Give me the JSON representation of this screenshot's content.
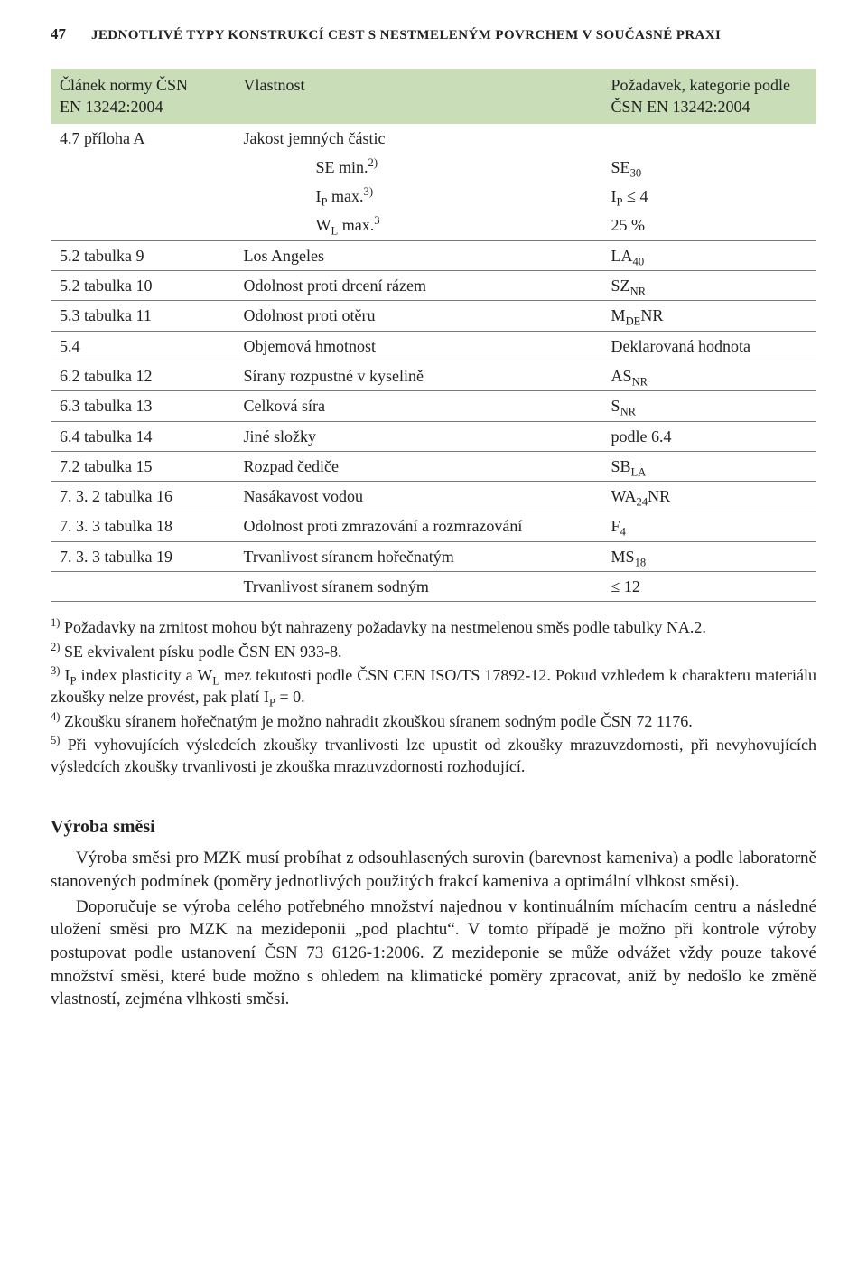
{
  "pageNumber": "47",
  "runningTitle": "JEDNOTLIVÉ TYPY KONSTRUKCÍ CEST S NESTMELENÝM POVRCHEM V SOUČASNÉ PRAXI",
  "table": {
    "head": {
      "c1a": "Článek normy ČSN",
      "c1b": "EN 13242:2004",
      "c2": "Vlastnost",
      "c3a": "Požadavek, kategorie podle",
      "c3b": "ČSN EN 13242:2004"
    },
    "rows": [
      {
        "c1": "4.7 příloha A",
        "c2": "Jakost jemných částic",
        "c3": ""
      },
      {
        "c1": "",
        "c2": "SE min.<sup>2)</sup>",
        "c3": "SE<sub>30</sub>",
        "indent": true
      },
      {
        "c1": "",
        "c2": "I<sub>P</sub> max.<sup>3)</sup>",
        "c3": "I<sub>P</sub> ≤ 4",
        "indent": true
      },
      {
        "c1": "",
        "c2": "W<sub>L</sub> max.<sup>3</sup>",
        "c3": "25 %",
        "indent": true,
        "lastOfGroup": true
      },
      {
        "c1": "5.2 tabulka 9",
        "c2": "Los Angeles",
        "c3": "LA<sub>40</sub>",
        "lastOfGroup": true
      },
      {
        "c1": "5.2 tabulka 10",
        "c2": "Odolnost proti drcení rázem",
        "c3": "SZ<sub>NR</sub>",
        "lastOfGroup": true
      },
      {
        "c1": "5.3 tabulka 11",
        "c2": "Odolnost proti otěru",
        "c3": "M<sub>DE</sub>NR",
        "lastOfGroup": true
      },
      {
        "c1": "5.4",
        "c2": "Objemová hmotnost",
        "c3": "Deklarovaná hodnota",
        "lastOfGroup": true
      },
      {
        "c1": "6.2 tabulka 12",
        "c2": "Sírany rozpustné v kyselině",
        "c3": "AS<sub>NR</sub>",
        "lastOfGroup": true
      },
      {
        "c1": "6.3 tabulka 13",
        "c2": "Celková síra",
        "c3": "S<sub>NR</sub>",
        "lastOfGroup": true
      },
      {
        "c1": "6.4 tabulka 14",
        "c2": "Jiné složky",
        "c3": "podle 6.4",
        "lastOfGroup": true
      },
      {
        "c1": "7.2 tabulka 15",
        "c2": "Rozpad čediče",
        "c3": "SB<sub>LA</sub>",
        "lastOfGroup": true
      },
      {
        "c1": "7. 3. 2 tabulka 16",
        "c2": "Nasákavost vodou",
        "c3": "WA<sub>24</sub>NR",
        "lastOfGroup": true
      },
      {
        "c1": "7. 3. 3 tabulka 18",
        "c2": "Odolnost proti zmrazování a rozmrazování",
        "c3": "F<sub>4</sub>",
        "lastOfGroup": true
      },
      {
        "c1": "7. 3. 3 tabulka 19",
        "c2": "Trvanlivost síranem hořečnatým",
        "c3": "MS<sub>18</sub>",
        "lastOfGroup": true
      },
      {
        "c1": "",
        "c2": "Trvanlivost síranem sodným",
        "c3": "≤ 12",
        "lastOfGroup": true
      }
    ]
  },
  "notes": [
    "<sup>1)</sup> Požadavky na zrnitost mohou být nahrazeny požadavky na nestmelenou směs podle tabulky NA.2.",
    "<sup>2)</sup> SE ekvivalent písku podle ČSN EN 933-8.",
    "<sup>3)</sup> I<sub>P</sub> index plasticity a W<sub>L</sub> mez tekutosti podle ČSN CEN ISO/TS 17892-12. Pokud vzhledem k charakteru materiálu zkoušky nelze provést, pak platí I<sub>P</sub> = 0.",
    "<sup>4)</sup> Zkoušku síranem hořečnatým je možno nahradit zkouškou síranem sodným podle ČSN 72 1176.",
    "<sup>5)</sup> Při vyhovujících výsledcích zkoušky trvanlivosti lze upustit od zkoušky mrazuvzdornosti, při nevyhovujících výsledcích zkoušky trvanlivosti je zkouška mrazuvzdornosti rozhodující."
  ],
  "sectionHeading": "Výroba směsi",
  "body": [
    "Výroba směsi pro MZK musí probíhat z odsouhlasených surovin (barevnost kameniva) a podle laboratorně stanovených podmínek (poměry jednotlivých použitých frakcí kameniva a optimální vlhkost směsi).",
    "Doporučuje se výroba celého potřebného množství najednou v kontinuálním míchacím centru a následné uložení směsi pro MZK na mezideponii „pod plachtu“. V tomto případě je možno při kontrole výroby postupovat podle ustanovení ČSN 73 6126-1:2006. Z mezideponie se může odvážet vždy pouze takové množství směsi, které bude možno s ohledem na klimatické poměry zpracovat, aniž by nedošlo ke změně vlastností, zejména vlhkosti směsi."
  ],
  "colors": {
    "headerBg": "#c9deb8",
    "border": "#7a7a7a",
    "text": "#222222",
    "background": "#ffffff"
  },
  "columnWidths": [
    "24%",
    "48%",
    "28%"
  ]
}
